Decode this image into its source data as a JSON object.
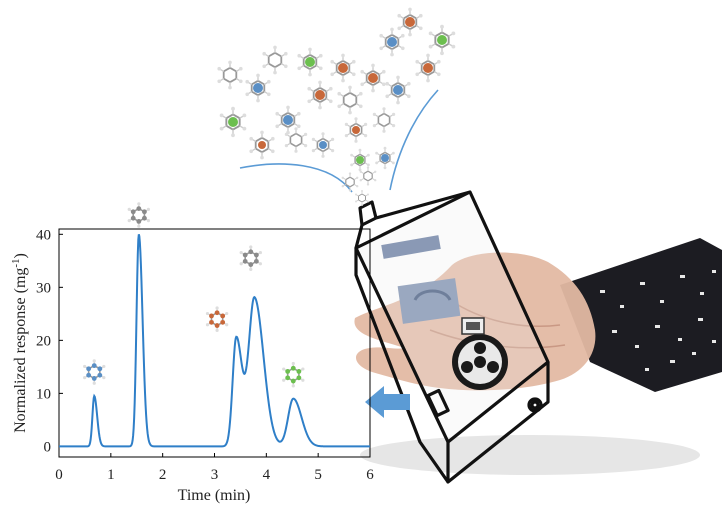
{
  "chart_data": {
    "type": "line",
    "xlabel": "Time (min)",
    "ylabel_main": "Normalized response (mg",
    "ylabel_sup": "-1",
    "ylabel_close": ")",
    "xlim": [
      0,
      6
    ],
    "ylim": [
      -2,
      41
    ],
    "xticks": [
      "0",
      "1",
      "2",
      "3",
      "4",
      "5",
      "6"
    ],
    "yticks": [
      "0",
      "10",
      "20",
      "30",
      "40"
    ],
    "grid": false,
    "line_color": "#2f7fc8",
    "baseline": 0,
    "peaks": [
      {
        "t": 0.68,
        "height": 9.5,
        "width": 0.035,
        "molecule": "benzene-molecule"
      },
      {
        "t": 1.54,
        "height": 40,
        "width": 0.045,
        "molecule": "toluene-molecule"
      },
      {
        "t": 3.42,
        "height": 20.5,
        "width": 0.07,
        "molecule": "ethylbenzene-molecule"
      },
      {
        "t": 3.77,
        "height": 28,
        "width": 0.11,
        "molecule": "ethylbenzene-molecule"
      },
      {
        "t": 4.52,
        "height": 9,
        "width": 0.1,
        "molecule": "xylene-molecule"
      }
    ]
  },
  "colors": {
    "line": "#2f7fc8",
    "arrow": "#5b9bd5",
    "carbon_grey": "#8a8a8a",
    "carbon_blue": "#5a8fc5",
    "carbon_orange": "#c8683a",
    "carbon_green": "#6cbf4f",
    "hydrogen": "#d8d8d8",
    "sleeve": "#1c1c22",
    "skin": "#e3b9a3"
  },
  "illustration": {
    "device": "portable-gas-chromatograph-device",
    "hand": "hand",
    "arrow": "flow-arrow-left"
  }
}
